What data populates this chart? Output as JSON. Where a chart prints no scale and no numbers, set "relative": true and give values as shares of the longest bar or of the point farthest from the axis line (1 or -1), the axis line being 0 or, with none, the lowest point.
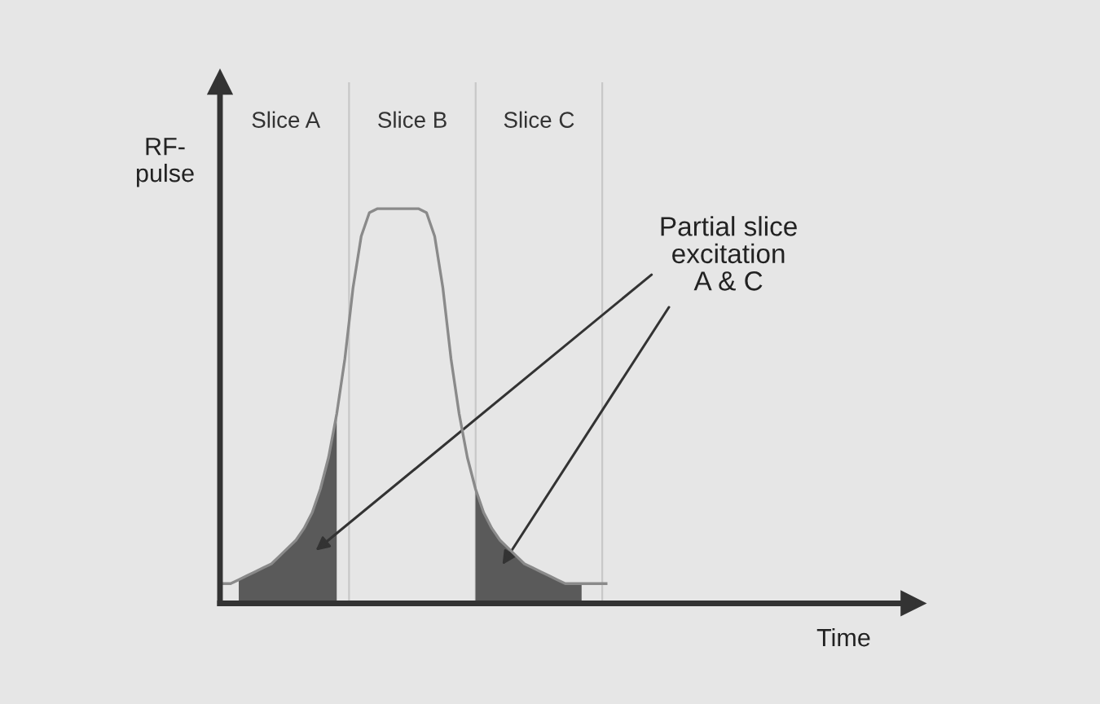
{
  "chart_data": {
    "type": "line",
    "relative": true,
    "ylabel": "RF-\npulse",
    "categories": [
      null,
      null,
      null,
      null,
      null,
      null,
      null,
      null,
      null,
      null,
      null,
      null,
      null,
      null,
      null,
      null,
      null,
      null,
      null,
      null,
      null,
      null,
      null,
      null,
      null,
      null,
      null,
      null,
      null,
      null,
      null,
      null,
      null,
      null,
      null,
      null,
      null,
      null,
      null,
      null,
      null,
      null,
      null,
      null,
      null,
      null,
      null,
      null
    ],
    "series": [
      {
        "color": "#8a8a8a",
        "values": [
          0.05,
          0.05,
          0.06,
          0.07,
          0.08,
          0.09,
          0.1,
          0.12,
          0.14,
          0.16,
          0.19,
          0.23,
          0.29,
          0.37,
          0.48,
          0.62,
          0.8,
          0.93,
          0.99,
          1,
          1,
          1,
          1,
          1,
          1,
          0.99,
          0.93,
          0.8,
          0.62,
          0.48,
          0.37,
          0.29,
          0.23,
          0.19,
          0.16,
          0.14,
          0.12,
          0.1,
          0.09,
          0.08,
          0.07,
          0.06,
          0.05,
          0.05,
          0.05,
          0.05,
          0.05,
          0.05
        ]
      },
      {
        "type": "area",
        "color": "#5a5a5a",
        "values": [
          null,
          null,
          0.06,
          0.07,
          0.08,
          0.09,
          0.1,
          0.12,
          0.14,
          0.16,
          0.19,
          0.23,
          0.29,
          0.37,
          0.48,
          null,
          null,
          null,
          null,
          null,
          null,
          null,
          null,
          null,
          null,
          null,
          null,
          null,
          null,
          null,
          null,
          null,
          null,
          null,
          null,
          null,
          null,
          null,
          null,
          null,
          null,
          null,
          null,
          null,
          null,
          null,
          null,
          null
        ]
      },
      {
        "type": "area",
        "color": "#5a5a5a",
        "values": [
          null,
          null,
          null,
          null,
          null,
          null,
          null,
          null,
          null,
          null,
          null,
          null,
          null,
          null,
          null,
          null,
          null,
          null,
          null,
          null,
          null,
          null,
          null,
          null,
          null,
          null,
          null,
          null,
          null,
          null,
          null,
          0.29,
          0.23,
          0.19,
          0.16,
          0.14,
          0.12,
          0.1,
          0.09,
          0.08,
          0.07,
          0.06,
          0.05,
          0.05,
          0.05,
          null,
          null,
          null
        ]
      }
    ],
    "annotations": [
      "Slice A",
      "Slice B",
      "Slice C",
      "Partial slice\nexcitation\nA & C",
      "Time"
    ]
  }
}
